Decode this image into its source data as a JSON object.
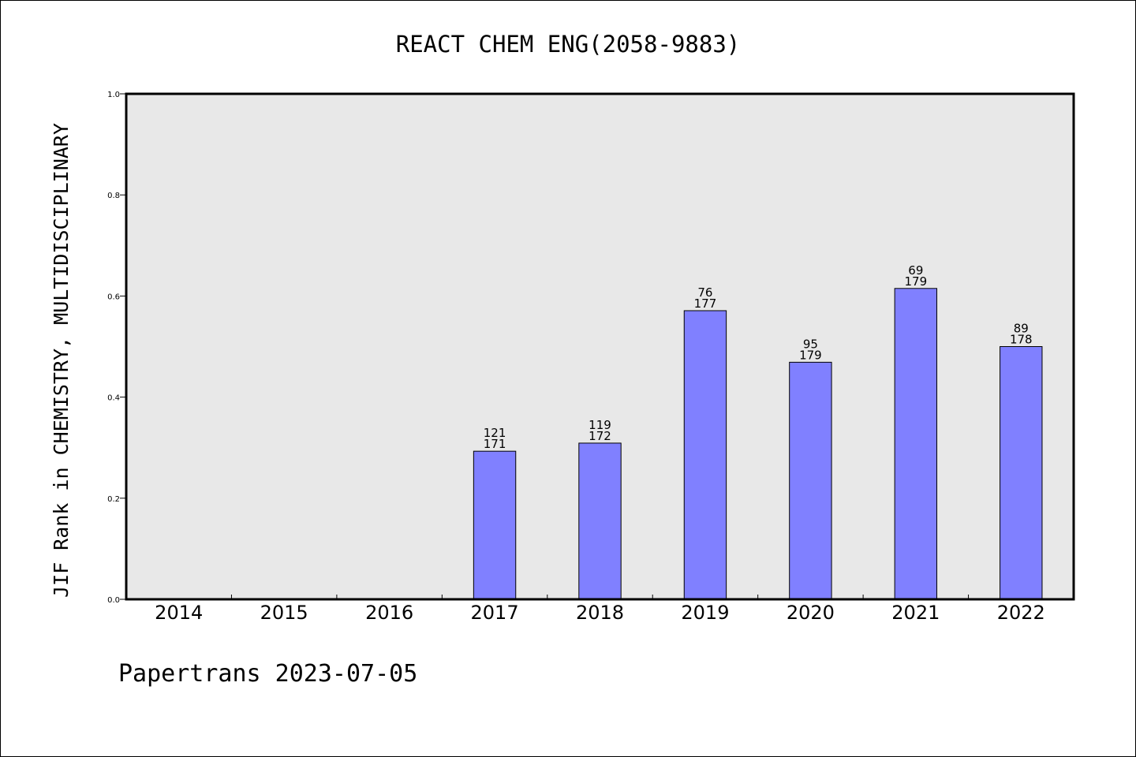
{
  "footer": "Papertrans 2023-07-05",
  "chart_data": {
    "type": "bar",
    "title": "REACT CHEM ENG(2058-9883)",
    "xlabel": "",
    "ylabel": "JIF Rank in CHEMISTRY, MULTIDISCIPLINARY",
    "categories": [
      "2014",
      "2015",
      "2016",
      "2017",
      "2018",
      "2019",
      "2020",
      "2021",
      "2022"
    ],
    "values": [
      null,
      null,
      null,
      0.293,
      0.309,
      0.571,
      0.469,
      0.615,
      0.5
    ],
    "labels": [
      null,
      null,
      null,
      [
        "121",
        "171"
      ],
      [
        "119",
        "172"
      ],
      [
        "76",
        "177"
      ],
      [
        "95",
        "179"
      ],
      [
        "69",
        "179"
      ],
      [
        "89",
        "178"
      ]
    ],
    "ylim": [
      0,
      1.0
    ],
    "yticks": [
      "0.0",
      "0.2",
      "0.4",
      "0.6",
      "0.8",
      "1.0"
    ],
    "grid": false,
    "colors": {
      "bar": "#8080ff",
      "plot_bg": "#e8e8e8",
      "edge": "#000000"
    }
  }
}
